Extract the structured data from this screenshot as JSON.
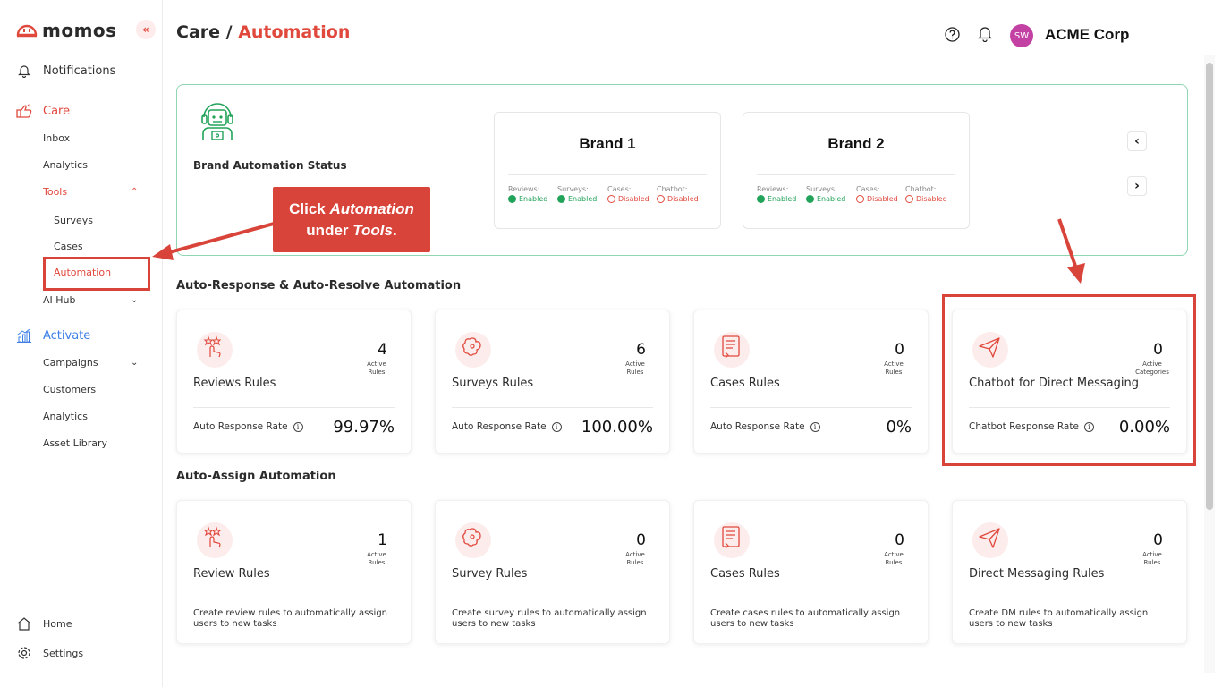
{
  "app": {
    "logo_text": "momos",
    "collapse_icon": "«"
  },
  "sidebar": {
    "notifications": "Notifications",
    "care": "Care",
    "care_items": [
      "Inbox",
      "Analytics",
      "Tools"
    ],
    "tools_items": [
      "Surveys",
      "Cases",
      "Automation"
    ],
    "ai_hub": "AI Hub",
    "activate": "Activate",
    "activate_items": [
      "Campaigns",
      "Customers",
      "Analytics",
      "Asset Library"
    ],
    "home": "Home",
    "settings": "Settings"
  },
  "header": {
    "crumb_parent": "Care / ",
    "crumb_current": "Automation",
    "avatar_initials": "SW",
    "org_name": "ACME Corp"
  },
  "status_panel": {
    "title": "Brand Automation Status",
    "brands": [
      {
        "name": "Brand 1",
        "stats": [
          {
            "key": "Reviews:",
            "value": "Enabled",
            "enabled": true
          },
          {
            "key": "Surveys:",
            "value": "Enabled",
            "enabled": true
          },
          {
            "key": "Cases:",
            "value": "Disabled",
            "enabled": false
          },
          {
            "key": "Chatbot:",
            "value": "Disabled",
            "enabled": false
          }
        ]
      },
      {
        "name": "Brand 2",
        "stats": [
          {
            "key": "Reviews:",
            "value": "Enabled",
            "enabled": true
          },
          {
            "key": "Surveys:",
            "value": "Enabled",
            "enabled": true
          },
          {
            "key": "Cases:",
            "value": "Disabled",
            "enabled": false
          },
          {
            "key": "Chatbot:",
            "value": "Disabled",
            "enabled": false
          }
        ]
      }
    ],
    "prev": "‹",
    "next": "›"
  },
  "auto_response": {
    "title": "Auto-Response & Auto-Resolve Automation",
    "cards": [
      {
        "icon": "reviews-icon",
        "title": "Reviews Rules",
        "count": "4",
        "count_label": "Active Rules",
        "metric_label": "Auto Response Rate",
        "metric_value": "99.97%"
      },
      {
        "icon": "surveys-icon",
        "title": "Surveys Rules",
        "count": "6",
        "count_label": "Active Rules",
        "metric_label": "Auto Response Rate",
        "metric_value": "100.00%"
      },
      {
        "icon": "cases-icon",
        "title": "Cases Rules",
        "count": "0",
        "count_label": "Active Rules",
        "metric_label": "Auto Response Rate",
        "metric_value": "0%"
      },
      {
        "icon": "send-icon",
        "title": "Chatbot for Direct Messaging",
        "count": "0",
        "count_label": "Active Categories",
        "metric_label": "Chatbot Response Rate",
        "metric_value": "0.00%"
      }
    ]
  },
  "auto_assign": {
    "title": "Auto-Assign Automation",
    "cards": [
      {
        "icon": "reviews-icon",
        "title": "Review Rules",
        "count": "1",
        "count_label": "Active Rules",
        "desc": "Create review rules to automatically assign users to new tasks"
      },
      {
        "icon": "surveys-icon",
        "title": "Survey Rules",
        "count": "0",
        "count_label": "Active Rules",
        "desc": "Create survey rules to automatically assign users to new tasks"
      },
      {
        "icon": "cases-icon",
        "title": "Cases Rules",
        "count": "0",
        "count_label": "Active Rules",
        "desc": "Create cases rules to automatically assign users to new tasks"
      },
      {
        "icon": "send-icon",
        "title": "Direct Messaging Rules",
        "count": "0",
        "count_label": "Active Rules",
        "desc": "Create DM rules to automatically assign users to new tasks"
      }
    ]
  },
  "annotation": {
    "line1_prefix": "Click ",
    "line1_em": "Automation",
    "line2_prefix": "under ",
    "line2_em": "Tools",
    "line2_suffix": "."
  },
  "colors": {
    "accent": "#e0483c",
    "activate": "#3d7fe6",
    "enabled": "#22a35a",
    "annotation": "#d9443a"
  }
}
